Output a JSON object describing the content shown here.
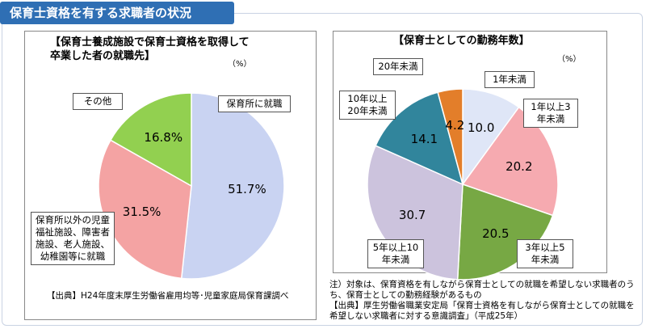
{
  "header": {
    "title": "保育士資格を有する求職者の状況"
  },
  "chart_data": [
    {
      "type": "pie",
      "title": "【保育士養成施設で保育士資格を取得して卒業した者の就職先】",
      "unit": "（%）",
      "categories": [
        "保育所に就職",
        "保育所以外の児童福祉施設、障害者施設、老人施設、幼稚園等に就職",
        "その他"
      ],
      "values": [
        51.7,
        31.5,
        16.8
      ],
      "value_labels": [
        "51.7%",
        "31.5%",
        "16.8%"
      ],
      "colors": [
        "#c9d3f2",
        "#f4a3a3",
        "#92d050"
      ],
      "source": "【出典】H24年度末厚生労働省雇用均等･児童家庭局保育課調べ"
    },
    {
      "type": "pie",
      "title": "【保育士としての勤務年数】",
      "unit": "（%）",
      "categories": [
        "1年未満",
        "1年以上3年未満",
        "3年以上5年未満",
        "5年以上10年未満",
        "10年以上20年未満",
        "20年未満"
      ],
      "values": [
        10.0,
        20.2,
        20.5,
        30.7,
        14.1,
        4.2
      ],
      "value_labels": [
        "10.0",
        "20.2",
        "20.5",
        "30.7",
        "14.1",
        "4.2"
      ],
      "colors": [
        "#dfe6f7",
        "#f6aab0",
        "#77a844",
        "#ccc3dd",
        "#31859c",
        "#e37e2a"
      ],
      "notes": [
        "注）対象は、保育資格を有しながら保育士としての就職を希望しない求職者のうち、保育士としての勤務経験があるもの",
        "【出典】厚生労働省職業安定局「保育士資格を有しながら保育士としての就職を希望しない求職者に対する意識調査」（平成25年）"
      ]
    }
  ]
}
